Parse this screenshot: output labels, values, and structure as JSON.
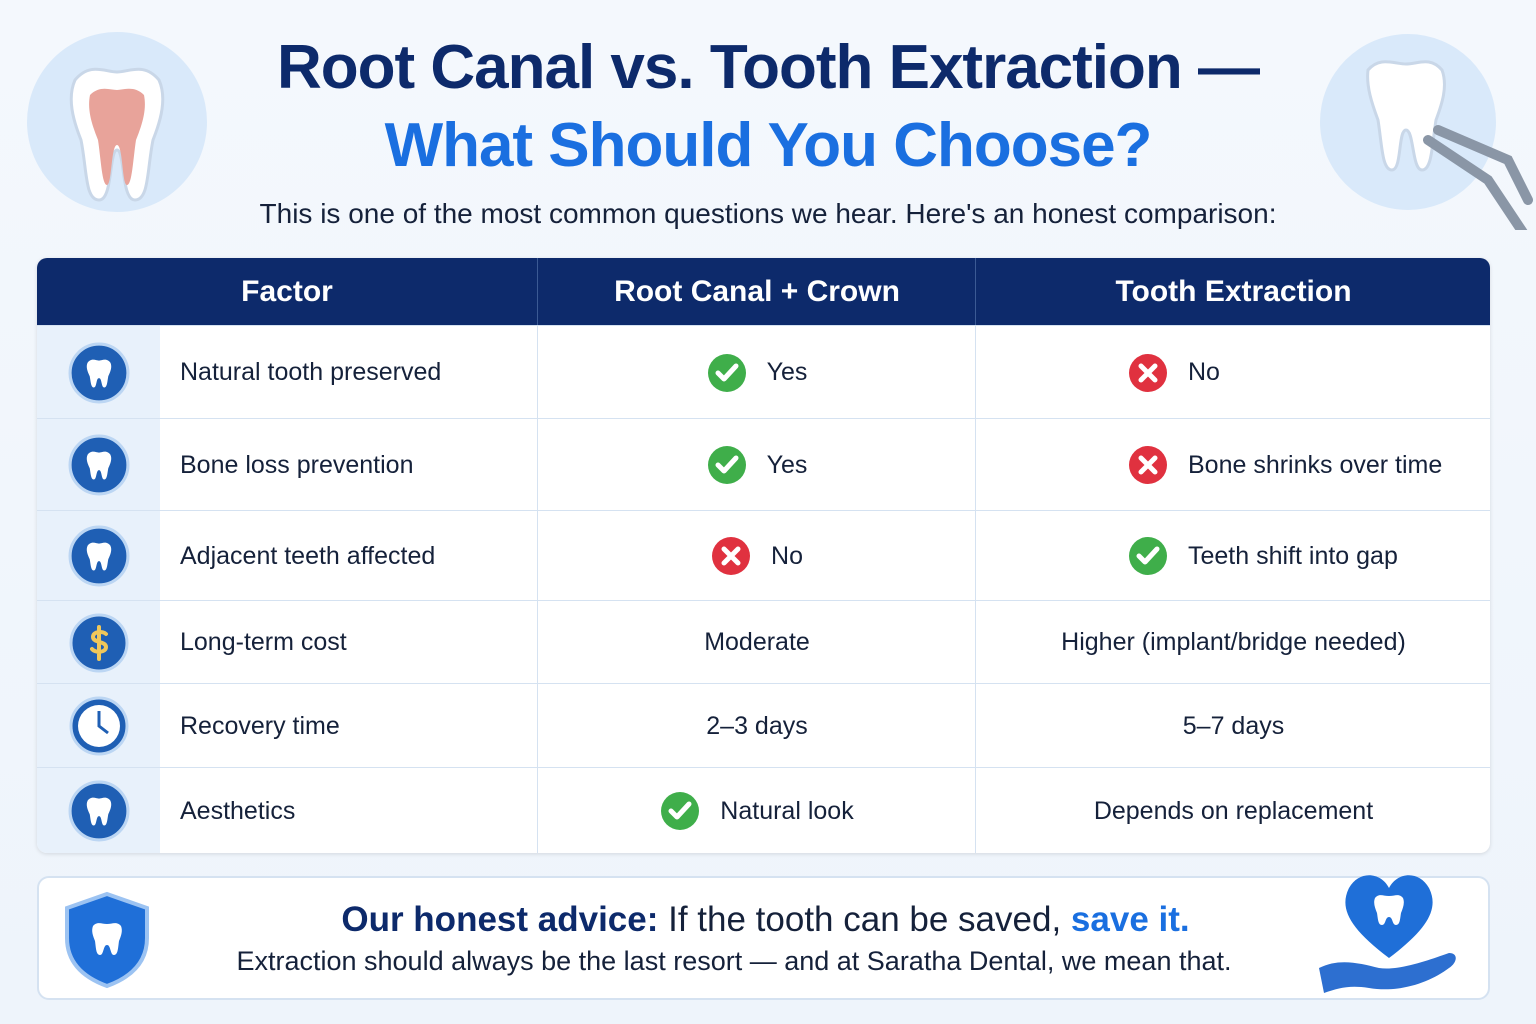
{
  "header": {
    "title_line1": "Root Canal vs. Tooth Extraction —",
    "title_line2": "What Should You Choose?",
    "subtitle": "This is one of the most common questions we hear. Here's an honest comparison:"
  },
  "table": {
    "columns": [
      "Factor",
      "Root Canal + Crown",
      "Tooth Extraction"
    ],
    "rows": [
      [
        "Natural tooth preserved",
        "Yes",
        "No"
      ],
      [
        "Bone loss prevention",
        "Yes",
        "Bone shrinks over time"
      ],
      [
        "Adjacent teeth affected",
        "No",
        "Teeth shift into gap"
      ],
      [
        "Long-term cost",
        "Moderate",
        "Higher (implant/bridge needed)"
      ],
      [
        "Recovery time",
        "2–3 days",
        "5–7 days"
      ],
      [
        "Aesthetics",
        "Natural look",
        "Depends on replacement"
      ]
    ]
  },
  "advice": {
    "label": "Our honest advice:",
    "text": "If the tooth can be saved,",
    "emphasis": "save it.",
    "note": "Extraction should always be the last resort — and at Saratha Dental, we mean that."
  }
}
